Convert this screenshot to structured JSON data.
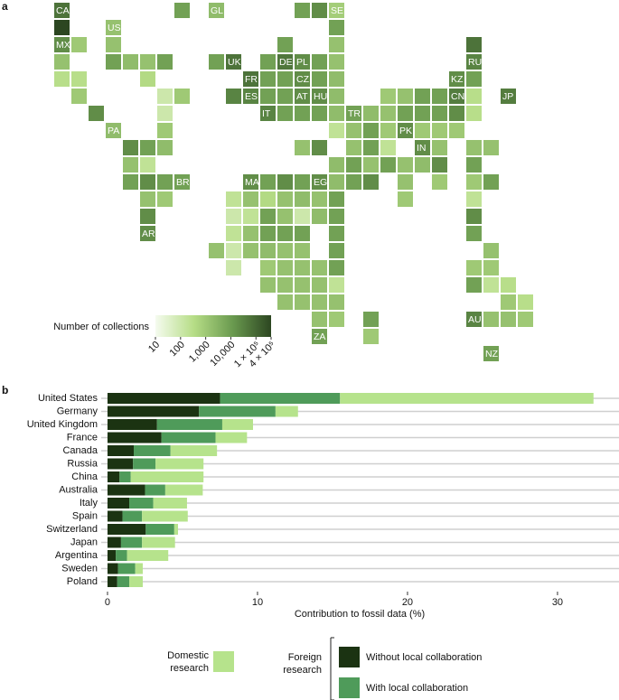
{
  "chart_data": [
    {
      "type": "tilemap",
      "panel_label": "a",
      "categories": [
        "CA",
        null,
        "GL",
        null,
        null,
        "SE",
        null,
        "US",
        null,
        "MX",
        null,
        null,
        null,
        null,
        null,
        null,
        null,
        null,
        null,
        null,
        null,
        "UK",
        null,
        "DE",
        "PL",
        null,
        null,
        "RU",
        null,
        null,
        null,
        "FR",
        null,
        null,
        "CZ",
        null,
        null,
        "KZ",
        null,
        null,
        null,
        null,
        null,
        "ES",
        null,
        null,
        "AT",
        "HU",
        null,
        null,
        null,
        null,
        null,
        "CN",
        null,
        "JP",
        null,
        null,
        "IT",
        null,
        null,
        null,
        null,
        "TR",
        null,
        null,
        null,
        null,
        null,
        null,
        null,
        "PA",
        null,
        null,
        null,
        null,
        null,
        "PK",
        null,
        null,
        null,
        null,
        null,
        null,
        null,
        null,
        null,
        null,
        null,
        "IN",
        null,
        null,
        null,
        null,
        null,
        null,
        null,
        null,
        null,
        null,
        null,
        null,
        null,
        null,
        null,
        null,
        "BR",
        "MA",
        null,
        null,
        null,
        "EG",
        null,
        null,
        null,
        null,
        null,
        null,
        null,
        null,
        null,
        null,
        null,
        null,
        null,
        null,
        null,
        null,
        null,
        null,
        null,
        null,
        null,
        null,
        null,
        null,
        null,
        null,
        null,
        "AR",
        null,
        null,
        null,
        null,
        null,
        null,
        null,
        null,
        null,
        null,
        null,
        null,
        null,
        null,
        null,
        null,
        null,
        null,
        null,
        null,
        null,
        null,
        null,
        null,
        null,
        null,
        null,
        null,
        null,
        null,
        null,
        null,
        null,
        null,
        null,
        null,
        null,
        null,
        null,
        null,
        "AU",
        null,
        null,
        null,
        "ZA",
        null,
        "NZ"
      ],
      "values": [
        60000,
        8000,
        2000,
        8000,
        20000,
        800,
        400000,
        1500,
        8000,
        20000,
        1000,
        1500,
        8000,
        1500,
        60000,
        1500,
        8000,
        2000,
        1500,
        8000,
        8000,
        60000,
        8000,
        50000,
        20000,
        8000,
        1500,
        30000,
        300,
        300,
        400,
        60000,
        8000,
        8000,
        20000,
        8000,
        2000,
        20000,
        8000,
        1000,
        100,
        1000,
        30000,
        30000,
        8000,
        8000,
        20000,
        20000,
        2000,
        1000,
        1500,
        8000,
        8000,
        40000,
        300,
        40000,
        20000,
        100,
        30000,
        8000,
        8000,
        8000,
        2000,
        8000,
        2000,
        1500,
        8000,
        8000,
        8000,
        20000,
        300,
        2000,
        1000,
        200,
        1500,
        8000,
        1000,
        20000,
        1000,
        1000,
        1000,
        20000,
        8000,
        2000,
        1500,
        20000,
        1500,
        8000,
        200,
        20000,
        1500,
        1500,
        1500,
        1500,
        200,
        2000,
        8000,
        1500,
        8000,
        1500,
        2000,
        20000,
        8000,
        8000,
        20000,
        8000,
        8000,
        20000,
        8000,
        20000,
        8000,
        20000,
        2000,
        8000,
        20000,
        1500,
        1000,
        1000,
        8000,
        1500,
        1000,
        200,
        1500,
        400,
        1500,
        2000,
        1500,
        8000,
        1000,
        200,
        20000,
        100,
        200,
        8000,
        1500,
        100,
        2000,
        8000,
        20000,
        20000,
        200,
        1500,
        8000,
        8000,
        8000,
        8000,
        8000,
        1500,
        100,
        1500,
        2000,
        1500,
        1500,
        8000,
        1500,
        100,
        1000,
        1500,
        1500,
        1500,
        8000,
        1000,
        1000,
        1500,
        1500,
        1500,
        1500,
        200,
        8000,
        200,
        300,
        1500,
        1500,
        1500,
        1500,
        1000,
        300,
        1500,
        1000,
        8000,
        30000,
        1500,
        1500,
        1000,
        8000,
        1000,
        8000
      ],
      "colorbar": {
        "title": "Number of collections",
        "log": true,
        "lim": [
          10,
          400000
        ],
        "colors": [
          "#f5fbef",
          "#b6dd86",
          "#6a9a4f",
          "#2c4621"
        ],
        "ticks": [
          10,
          100,
          {
            "value": 1000,
            "label": "1,000"
          },
          {
            "value": 10000,
            "label": "10,000"
          },
          {
            "value": 100000,
            "label": "1 × 10⁵"
          },
          {
            "value": 400000,
            "label": "4 × 10⁵"
          }
        ]
      }
    },
    {
      "type": "bar",
      "panel_label": "b",
      "orientation": "horizontal",
      "stacked": true,
      "categories": [
        "United States",
        "Germany",
        "United Kingdom",
        "France",
        "Canada",
        "Russia",
        "China",
        "Australia",
        "Italy",
        "Spain",
        "Switzerland",
        "Japan",
        "Argentina",
        "Sweden",
        "Poland"
      ],
      "series": [
        {
          "name": "Without local collaboration",
          "color": "#1b3312",
          "values": [
            7.5,
            6.1,
            3.3,
            3.6,
            1.75,
            1.7,
            0.8,
            2.5,
            1.45,
            1.0,
            2.55,
            0.9,
            0.55,
            0.7,
            0.65
          ]
        },
        {
          "name": "With local collaboration",
          "color": "#4f9b5a",
          "values": [
            8.0,
            5.1,
            4.35,
            3.6,
            2.45,
            1.5,
            0.75,
            1.35,
            1.6,
            1.3,
            1.9,
            1.4,
            0.75,
            1.15,
            0.8
          ]
        },
        {
          "name": "Domestic research",
          "color": "#b6e38c",
          "values": [
            16.9,
            1.5,
            2.05,
            2.1,
            3.1,
            3.2,
            4.85,
            2.5,
            2.25,
            3.05,
            0.25,
            2.2,
            2.75,
            0.5,
            0.9
          ]
        }
      ],
      "xlim": [
        -0.42,
        34.1
      ],
      "xticks": [
        0,
        10,
        20,
        30
      ],
      "x_label": "Contribution to fossil data (%)",
      "legend_group_label": "Foreign research"
    }
  ]
}
